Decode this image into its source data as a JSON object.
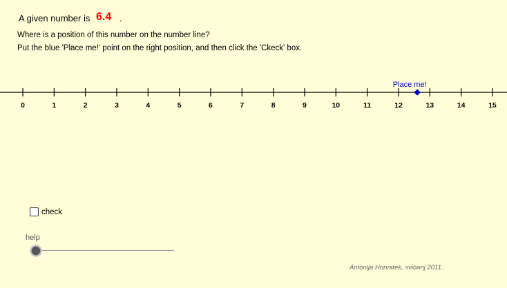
{
  "header": {
    "given_prefix": "A given number is",
    "given_number": "6.4",
    "given_suffix": ".",
    "given_color": "#ff0000"
  },
  "instructions": {
    "question": "Where is a position of this number on the number line?",
    "action": "Put the blue 'Place me!' point on the right position, and then click the 'Ckeck' box."
  },
  "number_line": {
    "min": 0,
    "max": 15,
    "tick_labels": [
      "0",
      "1",
      "2",
      "3",
      "4",
      "5",
      "6",
      "7",
      "8",
      "9",
      "10",
      "11",
      "12",
      "13",
      "14",
      "15"
    ],
    "point_label": "Place me!",
    "point_value": 12.6,
    "point_color": "#0000cc"
  },
  "check": {
    "label": "check",
    "checked": false
  },
  "help": {
    "label": "help",
    "value": 0
  },
  "footer": {
    "author": "Antonija Horvatek, svibanj 2011."
  }
}
